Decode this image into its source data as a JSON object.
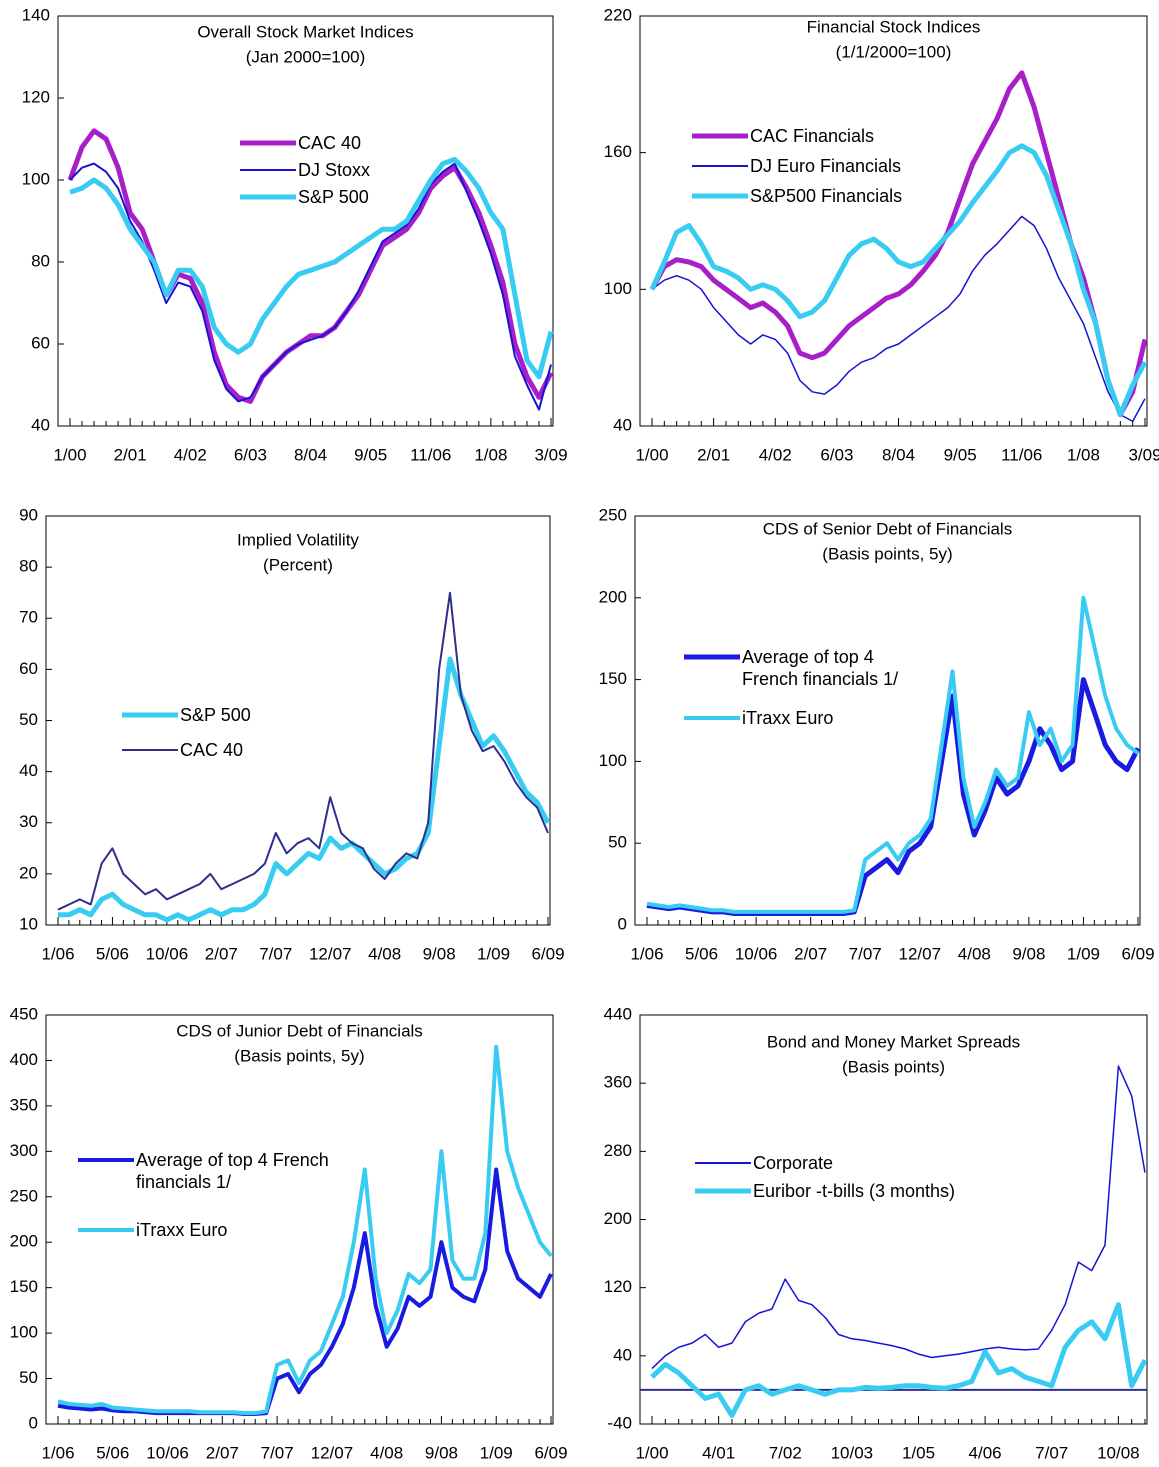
{
  "chart_data": [
    {
      "type": "line",
      "title": "Overall Stock Market Indices",
      "subtitle": "(Jan 2000=100)",
      "categories": [
        "1/00",
        null,
        null,
        null,
        null,
        "2/01",
        null,
        null,
        null,
        null,
        "4/02",
        null,
        null,
        null,
        null,
        "6/03",
        null,
        null,
        null,
        null,
        "8/04",
        null,
        null,
        null,
        null,
        "9/05",
        null,
        null,
        null,
        null,
        "11/06",
        null,
        null,
        null,
        null,
        "1/08",
        null,
        null,
        null,
        null,
        "3/09"
      ],
      "ylim": [
        40,
        140
      ],
      "yticks": [
        40,
        60,
        80,
        100,
        120,
        140
      ],
      "series": [
        {
          "name": "CAC 40",
          "color": "#a81ec8",
          "values": [
            100,
            108,
            112,
            110,
            103,
            92,
            88,
            80,
            72,
            77,
            76,
            70,
            58,
            50,
            47,
            46,
            52,
            55,
            58,
            60,
            62,
            62,
            64,
            68,
            72,
            78,
            84,
            86,
            88,
            92,
            98,
            101,
            103,
            98,
            92,
            84,
            75,
            60,
            52,
            47,
            53
          ]
        },
        {
          "name": "DJ Stoxx",
          "color": "#1414d2",
          "values": [
            100,
            103,
            104,
            102,
            98,
            90,
            85,
            78,
            70,
            75,
            74,
            68,
            56,
            49,
            46,
            47,
            52,
            55,
            58,
            60,
            61,
            62,
            64,
            68,
            73,
            79,
            85,
            87,
            89,
            93,
            99,
            102,
            104,
            97,
            90,
            82,
            72,
            57,
            50,
            44,
            55
          ]
        },
        {
          "name": "S&P 500",
          "color": "#38ccf2",
          "values": [
            97,
            98,
            100,
            98,
            94,
            88,
            84,
            80,
            72,
            78,
            78,
            74,
            64,
            60,
            58,
            60,
            66,
            70,
            74,
            77,
            78,
            79,
            80,
            82,
            84,
            86,
            88,
            88,
            90,
            95,
            100,
            104,
            105,
            102,
            98,
            92,
            88,
            72,
            56,
            52,
            63
          ]
        }
      ]
    },
    {
      "type": "line",
      "title": "Financial Stock Indices",
      "subtitle": "(1/1/2000=100)",
      "categories": [
        "1/00",
        null,
        null,
        null,
        null,
        "2/01",
        null,
        null,
        null,
        null,
        "4/02",
        null,
        null,
        null,
        null,
        "6/03",
        null,
        null,
        null,
        null,
        "8/04",
        null,
        null,
        null,
        null,
        "9/05",
        null,
        null,
        null,
        null,
        "11/06",
        null,
        null,
        null,
        null,
        "1/08",
        null,
        null,
        null,
        null,
        "3/09"
      ],
      "ylim": [
        40,
        220
      ],
      "yticks": [
        40,
        100,
        160,
        220
      ],
      "series": [
        {
          "name": "CAC Financials",
          "color": "#a81ec8",
          "values": [
            100,
            110,
            113,
            112,
            110,
            104,
            100,
            96,
            92,
            94,
            90,
            84,
            72,
            70,
            72,
            78,
            84,
            88,
            92,
            96,
            98,
            102,
            108,
            115,
            125,
            140,
            155,
            165,
            175,
            188,
            195,
            180,
            160,
            140,
            120,
            105,
            85,
            60,
            45,
            55,
            78
          ]
        },
        {
          "name": "DJ Euro Financials",
          "color": "#1414d2",
          "values": [
            100,
            104,
            106,
            104,
            100,
            92,
            86,
            80,
            76,
            80,
            78,
            72,
            60,
            55,
            54,
            58,
            64,
            68,
            70,
            74,
            76,
            80,
            84,
            88,
            92,
            98,
            108,
            115,
            120,
            126,
            132,
            128,
            118,
            105,
            95,
            85,
            70,
            55,
            45,
            42,
            52
          ]
        },
        {
          "name": "S&P500 Financials",
          "color": "#38ccf2",
          "values": [
            100,
            112,
            125,
            128,
            120,
            110,
            108,
            105,
            100,
            102,
            100,
            95,
            88,
            90,
            95,
            105,
            115,
            120,
            122,
            118,
            112,
            110,
            112,
            118,
            124,
            130,
            138,
            145,
            152,
            160,
            163,
            160,
            150,
            135,
            120,
            100,
            85,
            60,
            45,
            58,
            68
          ]
        }
      ]
    },
    {
      "type": "line",
      "title": "Implied Volatility",
      "subtitle": "(Percent)",
      "categories": [
        "1/06",
        null,
        null,
        null,
        null,
        "5/06",
        null,
        null,
        null,
        null,
        "10/06",
        null,
        null,
        null,
        null,
        "2/07",
        null,
        null,
        null,
        null,
        "7/07",
        null,
        null,
        null,
        null,
        "12/07",
        null,
        null,
        null,
        null,
        "4/08",
        null,
        null,
        null,
        null,
        "9/08",
        null,
        null,
        null,
        null,
        "1/09",
        null,
        null,
        null,
        null,
        "6/09"
      ],
      "ylim": [
        10,
        90
      ],
      "yticks": [
        10,
        20,
        30,
        40,
        50,
        60,
        70,
        80,
        90
      ],
      "series": [
        {
          "name": "S&P 500",
          "color": "#38ccf2",
          "values": [
            12,
            12,
            13,
            12,
            15,
            16,
            14,
            13,
            12,
            12,
            11,
            12,
            11,
            12,
            13,
            12,
            13,
            13,
            14,
            16,
            22,
            20,
            22,
            24,
            23,
            27,
            25,
            26,
            24,
            22,
            20,
            21,
            23,
            24,
            28,
            45,
            62,
            55,
            50,
            45,
            47,
            44,
            40,
            36,
            34,
            30
          ]
        },
        {
          "name": "CAC 40",
          "color": "#2e2e8c",
          "values": [
            13,
            14,
            15,
            14,
            22,
            25,
            20,
            18,
            16,
            17,
            15,
            16,
            17,
            18,
            20,
            17,
            18,
            19,
            20,
            22,
            28,
            24,
            26,
            27,
            25,
            35,
            28,
            26,
            25,
            21,
            19,
            22,
            24,
            23,
            30,
            60,
            75,
            55,
            48,
            44,
            45,
            42,
            38,
            35,
            33,
            28
          ]
        }
      ]
    },
    {
      "type": "line",
      "title": "CDS of Senior Debt of Financials",
      "subtitle": "(Basis points, 5y)",
      "categories": [
        "1/06",
        null,
        null,
        null,
        null,
        "5/06",
        null,
        null,
        null,
        null,
        "10/06",
        null,
        null,
        null,
        null,
        "2/07",
        null,
        null,
        null,
        null,
        "7/07",
        null,
        null,
        null,
        null,
        "12/07",
        null,
        null,
        null,
        null,
        "4/08",
        null,
        null,
        null,
        null,
        "9/08",
        null,
        null,
        null,
        null,
        "1/09",
        null,
        null,
        null,
        null,
        "6/09"
      ],
      "ylim": [
        0,
        250
      ],
      "yticks": [
        0,
        50,
        100,
        150,
        200,
        250
      ],
      "series": [
        {
          "name": "Average of top 4 French financials 1/",
          "color": "#1a1ae0",
          "values": [
            12,
            11,
            10,
            11,
            10,
            9,
            8,
            8,
            7,
            7,
            7,
            7,
            7,
            7,
            7,
            7,
            7,
            7,
            7,
            8,
            30,
            35,
            40,
            32,
            45,
            50,
            60,
            100,
            140,
            80,
            55,
            70,
            90,
            80,
            85,
            100,
            120,
            110,
            95,
            100,
            150,
            130,
            110,
            100,
            95,
            108
          ]
        },
        {
          "name": "iTraxx Euro",
          "color": "#38ccf2",
          "values": [
            13,
            12,
            11,
            12,
            11,
            10,
            9,
            9,
            8,
            8,
            8,
            8,
            8,
            8,
            8,
            8,
            8,
            8,
            8,
            9,
            40,
            45,
            50,
            40,
            50,
            55,
            65,
            110,
            155,
            90,
            60,
            75,
            95,
            85,
            90,
            130,
            110,
            120,
            100,
            110,
            200,
            170,
            140,
            120,
            110,
            105
          ]
        }
      ]
    },
    {
      "type": "line",
      "title": "CDS of Junior Debt of Financials",
      "subtitle": "(Basis points, 5y)",
      "categories": [
        "1/06",
        null,
        null,
        null,
        null,
        "5/06",
        null,
        null,
        null,
        null,
        "10/06",
        null,
        null,
        null,
        null,
        "2/07",
        null,
        null,
        null,
        null,
        "7/07",
        null,
        null,
        null,
        null,
        "12/07",
        null,
        null,
        null,
        null,
        "4/08",
        null,
        null,
        null,
        null,
        "9/08",
        null,
        null,
        null,
        null,
        "1/09",
        null,
        null,
        null,
        null,
        "6/09"
      ],
      "ylim": [
        0,
        450
      ],
      "yticks": [
        0,
        50,
        100,
        150,
        200,
        250,
        300,
        350,
        400,
        450
      ],
      "series": [
        {
          "name": "Average of top 4 French financials 1/",
          "color": "#1a1ae0",
          "values": [
            20,
            18,
            17,
            16,
            17,
            15,
            14,
            14,
            13,
            12,
            12,
            12,
            12,
            12,
            12,
            12,
            12,
            11,
            11,
            12,
            50,
            55,
            35,
            55,
            65,
            85,
            110,
            150,
            210,
            130,
            85,
            105,
            140,
            130,
            140,
            200,
            150,
            140,
            135,
            170,
            280,
            190,
            160,
            150,
            140,
            165
          ]
        },
        {
          "name": "iTraxx Euro",
          "color": "#38ccf2",
          "values": [
            25,
            22,
            21,
            20,
            22,
            18,
            17,
            16,
            15,
            14,
            14,
            14,
            14,
            13,
            13,
            13,
            13,
            12,
            12,
            14,
            65,
            70,
            45,
            70,
            80,
            110,
            140,
            200,
            280,
            160,
            100,
            125,
            165,
            155,
            170,
            300,
            180,
            160,
            160,
            210,
            415,
            300,
            260,
            230,
            200,
            185
          ]
        }
      ]
    },
    {
      "type": "line",
      "title": "Bond and Money Market Spreads",
      "subtitle": "(Basis points)",
      "categories": [
        "1/00",
        null,
        null,
        null,
        null,
        "4/01",
        null,
        null,
        null,
        null,
        "7/02",
        null,
        null,
        null,
        null,
        "10/03",
        null,
        null,
        null,
        null,
        "1/05",
        null,
        null,
        null,
        null,
        "4/06",
        null,
        null,
        null,
        null,
        "7/07",
        null,
        null,
        null,
        null,
        "10/08",
        null,
        null
      ],
      "ylim": [
        -40,
        440
      ],
      "yticks": [
        -40,
        40,
        120,
        200,
        280,
        360,
        440
      ],
      "zero_line": true,
      "series": [
        {
          "name": "Corporate",
          "color": "#1414d2",
          "values": [
            25,
            40,
            50,
            55,
            65,
            50,
            55,
            80,
            90,
            95,
            130,
            105,
            100,
            85,
            65,
            60,
            58,
            55,
            52,
            48,
            42,
            38,
            40,
            42,
            45,
            48,
            50,
            48,
            47,
            48,
            70,
            100,
            150,
            140,
            170,
            380,
            345,
            255
          ]
        },
        {
          "name": "Euribor -t-bills (3 months)",
          "color": "#38ccf2",
          "values": [
            15,
            30,
            20,
            5,
            -10,
            -5,
            -30,
            0,
            5,
            -5,
            0,
            5,
            0,
            -5,
            0,
            0,
            3,
            2,
            3,
            5,
            5,
            3,
            2,
            5,
            10,
            45,
            20,
            25,
            15,
            10,
            5,
            50,
            70,
            80,
            60,
            100,
            5,
            35
          ]
        }
      ]
    }
  ]
}
